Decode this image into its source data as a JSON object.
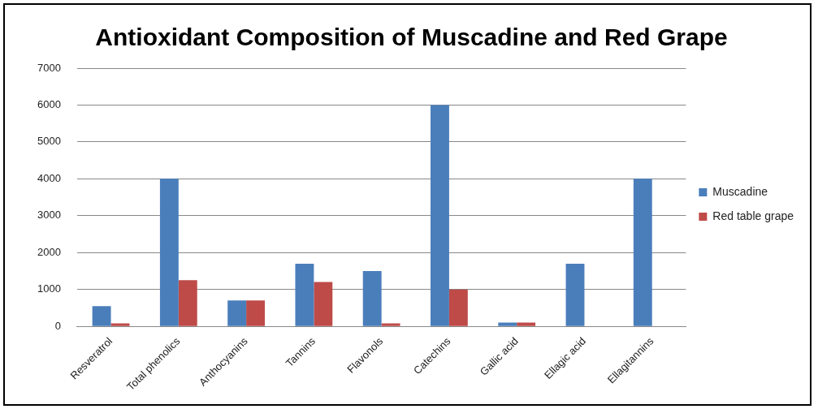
{
  "chart_data": {
    "type": "bar",
    "title": "Antioxidant Composition of Muscadine and Red Grape",
    "categories": [
      "Resveratrol",
      "Total phenolics",
      "Anthocyanins",
      "Tannins",
      "Flavonols",
      "Catechins",
      "Gallic acid",
      "Ellagic acid",
      "Ellagitannins"
    ],
    "series": [
      {
        "name": "Muscadine",
        "color": "#4a7ebb",
        "values": [
          550,
          4000,
          700,
          1700,
          1500,
          6000,
          100,
          1700,
          4000
        ]
      },
      {
        "name": "Red table grape",
        "color": "#be4b48",
        "values": [
          80,
          1250,
          700,
          1200,
          80,
          1000,
          100,
          0,
          0
        ]
      }
    ],
    "ylim": [
      0,
      7000
    ],
    "yticks": [
      0,
      1000,
      2000,
      3000,
      4000,
      5000,
      6000,
      7000
    ],
    "grid": "y",
    "legend": "right"
  }
}
